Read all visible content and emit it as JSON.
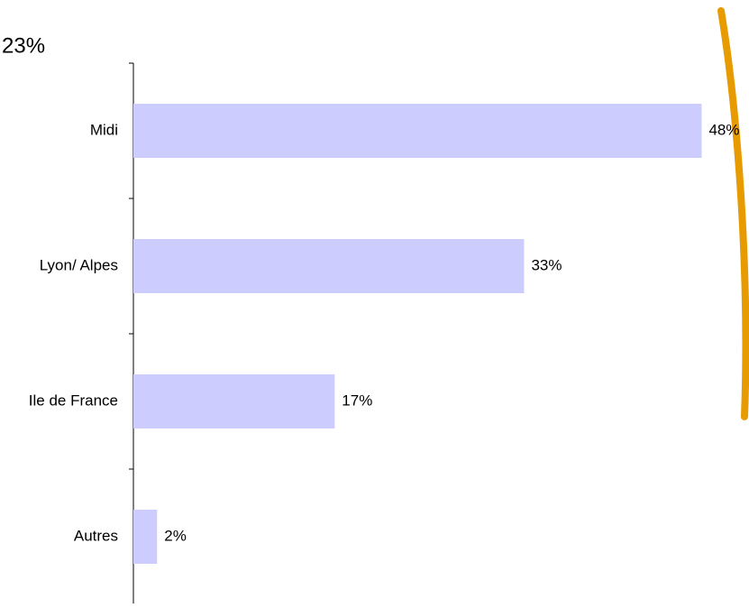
{
  "chart_data": {
    "type": "bar",
    "orientation": "horizontal",
    "annotation": "23%",
    "categories": [
      "Midi",
      "Lyon/ Alpes",
      "Ile de France",
      "Autres"
    ],
    "values": [
      48,
      33,
      17,
      2
    ],
    "value_labels": [
      "48%",
      "33%",
      "17%",
      "2%"
    ],
    "color": "#ccccff",
    "xlim": [
      0,
      52
    ]
  }
}
